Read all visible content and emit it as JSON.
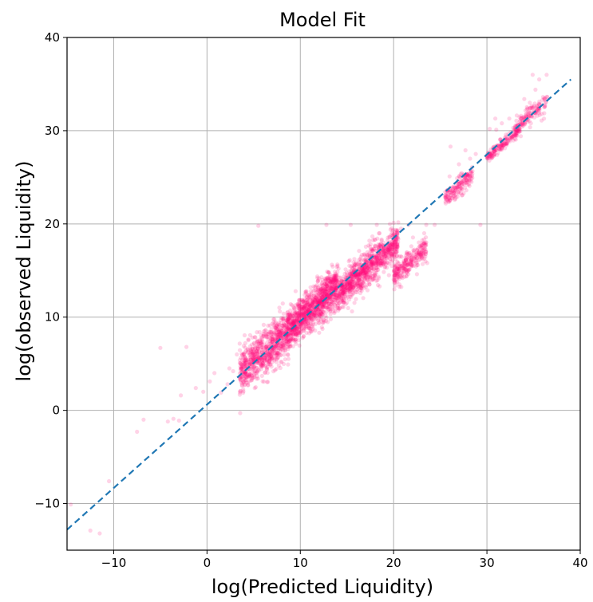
{
  "chart_data": {
    "type": "scatter",
    "title": "Model Fit",
    "xlabel": "log(Predicted Liquidity)",
    "ylabel": "log(observed Liquidity)",
    "xlim": [
      -15,
      40
    ],
    "ylim": [
      -15,
      40
    ],
    "xticks": [
      -10,
      0,
      10,
      20,
      30,
      40
    ],
    "yticks": [
      -10,
      0,
      10,
      20,
      30,
      40
    ],
    "xtick_labels": [
      "−10",
      "0",
      "10",
      "20",
      "30",
      "40"
    ],
    "ytick_labels": [
      "−10",
      "0",
      "10",
      "20",
      "30",
      "40"
    ],
    "grid": true,
    "point_color": "#ff0a78",
    "point_alpha": 0.18,
    "reference_line": {
      "color": "#1f77b4",
      "style": "dashed",
      "points": [
        [
          -15,
          -12.8
        ],
        [
          39,
          35.5
        ]
      ]
    },
    "series": [
      {
        "points": [
          [
            -14.6,
            -10.1
          ],
          [
            -12.5,
            -12.9
          ],
          [
            -11.5,
            -13.2
          ],
          [
            -10.5,
            -7.6
          ],
          [
            -7.5,
            -2.3
          ],
          [
            -6.8,
            -1.0
          ],
          [
            -5.0,
            6.7
          ],
          [
            -4.2,
            -1.2
          ],
          [
            -3.6,
            -0.9
          ],
          [
            -3.0,
            -1.1
          ],
          [
            -2.2,
            6.8
          ],
          [
            -2.8,
            1.6
          ],
          [
            -1.2,
            2.4
          ],
          [
            -0.4,
            2.0
          ],
          [
            0.3,
            3.1
          ],
          [
            0.8,
            4.0
          ],
          [
            1.5,
            1.9
          ],
          [
            2.2,
            2.8
          ],
          [
            2.8,
            4.2
          ],
          [
            3.2,
            6.0
          ],
          [
            2.4,
            4.5
          ],
          [
            4.0,
            3.4
          ],
          [
            4.5,
            5.2
          ],
          [
            5.1,
            6.5
          ],
          [
            5.8,
            7.3
          ],
          [
            6.4,
            4.4
          ],
          [
            6.9,
            8.0
          ],
          [
            7.5,
            9.1
          ],
          [
            8.0,
            6.6
          ],
          [
            8.6,
            10.2
          ],
          [
            9.1,
            8.8
          ],
          [
            9.7,
            11.4
          ],
          [
            10.2,
            9.6
          ],
          [
            10.8,
            12.0
          ],
          [
            11.3,
            10.5
          ],
          [
            11.9,
            13.2
          ],
          [
            12.4,
            11.6
          ],
          [
            13.0,
            14.0
          ],
          [
            13.5,
            12.7
          ],
          [
            14.1,
            15.2
          ],
          [
            14.6,
            13.4
          ],
          [
            15.2,
            16.0
          ],
          [
            15.8,
            14.5
          ],
          [
            16.3,
            17.1
          ],
          [
            16.9,
            15.3
          ],
          [
            17.4,
            18.2
          ],
          [
            18.0,
            16.4
          ],
          [
            18.5,
            19.0
          ],
          [
            19.1,
            17.0
          ],
          [
            19.6,
            20.0
          ],
          [
            20.2,
            18.1
          ],
          [
            20.8,
            19.5
          ],
          [
            21.3,
            16.2
          ],
          [
            21.9,
            17.6
          ],
          [
            22.5,
            14.6
          ],
          [
            23.0,
            16.5
          ],
          [
            23.6,
            15.8
          ],
          [
            17.7,
            14.4
          ],
          [
            15.8,
            14.5
          ],
          [
            19.5,
            14.5
          ],
          [
            12.8,
            19.9
          ],
          [
            15.4,
            19.9
          ],
          [
            18.2,
            19.9
          ],
          [
            21.6,
            19.9
          ],
          [
            23.5,
            19.9
          ],
          [
            24.4,
            19.9
          ],
          [
            29.3,
            19.9
          ],
          [
            5.5,
            19.8
          ],
          [
            26.0,
            25.1
          ],
          [
            26.8,
            24.9
          ],
          [
            27.0,
            26.4
          ],
          [
            27.7,
            27.9
          ],
          [
            28.2,
            27.0
          ],
          [
            26.1,
            28.3
          ],
          [
            28.8,
            27.5
          ],
          [
            30.3,
            30.2
          ],
          [
            30.9,
            31.3
          ],
          [
            31.6,
            30.8
          ],
          [
            32.4,
            31.3
          ],
          [
            31.0,
            30.1
          ],
          [
            33.5,
            30.9
          ],
          [
            34.0,
            33.4
          ],
          [
            34.6,
            33.0
          ],
          [
            35.2,
            34.4
          ],
          [
            34.9,
            36.0
          ],
          [
            35.6,
            35.5
          ],
          [
            36.4,
            36.0
          ]
        ],
        "clusters": [
          {
            "x0": 3.5,
            "x1": 8.5,
            "y_center_offset": 0.2,
            "spread": 2.2,
            "density": 700
          },
          {
            "x0": 8.5,
            "x1": 14.0,
            "y_center_offset": 0.3,
            "spread": 2.0,
            "density": 1100
          },
          {
            "x0": 14.0,
            "x1": 20.5,
            "y_center_offset": -0.6,
            "spread": 1.7,
            "density": 900
          },
          {
            "x0": 20.0,
            "x1": 23.5,
            "y_center_offset": -4.0,
            "spread": 1.2,
            "density": 260
          },
          {
            "x0": 25.5,
            "x1": 28.5,
            "y_center_offset": -0.6,
            "spread": 0.9,
            "density": 160
          },
          {
            "x0": 30.0,
            "x1": 33.5,
            "y_center_offset": -0.2,
            "spread": 0.6,
            "density": 160
          },
          {
            "x0": 33.0,
            "x1": 36.5,
            "y_center_offset": 0.3,
            "spread": 1.0,
            "density": 140
          }
        ]
      }
    ]
  }
}
